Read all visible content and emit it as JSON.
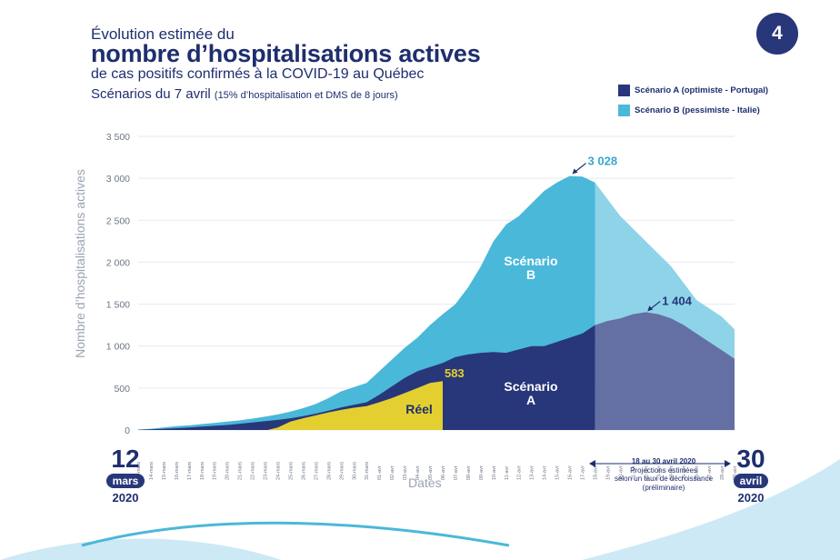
{
  "header": {
    "line1": "Évolution estimée du",
    "line2": "nombre d’hospitalisations actives",
    "line3": "de cas positifs confirmés à la COVID-19 au Québec",
    "line4": "Scénarios du 7 avril",
    "line4_small": "(15% d’hospitalisation et DMS de 8 jours)",
    "badge": "4"
  },
  "legend": [
    {
      "label": "Scénario A (optimiste - Portugal)",
      "color": "#27377a"
    },
    {
      "label": "Scénario B (pessimiste - Italie)",
      "color": "#4ab8d9"
    }
  ],
  "axis": {
    "xlabel": "Dates",
    "ylabel": "Nombre d’hospitalisations actives"
  },
  "start_date": {
    "day": "12",
    "month": "mars",
    "year": "2020"
  },
  "end_date": {
    "day": "30",
    "month": "avril",
    "year": "2020"
  },
  "projection": {
    "range": "18 au 30 avril 2020",
    "line1": "Projections estimées",
    "line2": "selon un taux de décroissance",
    "line3": "(préliminaire)"
  },
  "chart_data": {
    "type": "area",
    "ylim": [
      0,
      3500
    ],
    "yticks": [
      "0",
      "500",
      "1 000",
      "1 500",
      "2 000",
      "2 500",
      "3 000",
      "3 500"
    ],
    "x": [
      "13-mars",
      "14-mars",
      "15-mars",
      "16-mars",
      "17-mars",
      "18-mars",
      "19-mars",
      "20-mars",
      "21-mars",
      "22-mars",
      "23-mars",
      "24-mars",
      "25-mars",
      "26-mars",
      "27-mars",
      "28-mars",
      "29-mars",
      "30-mars",
      "31-mars",
      "01-avr",
      "02-avr",
      "03-avr",
      "04-avr",
      "05-avr",
      "06-avr",
      "07-avr",
      "08-avr",
      "09-avr",
      "10-avr",
      "11-avr",
      "12-avr",
      "13-avr",
      "14-avr",
      "15-avr",
      "16-avr",
      "17-avr",
      "18-avr",
      "19-avr",
      "20-avr",
      "21-avr",
      "22-avr",
      "23-avr",
      "24-avr",
      "25-avr",
      "26-avr",
      "27-avr",
      "28-avr",
      "29-avr"
    ],
    "series": [
      {
        "name": "Scénario B",
        "color": "#4ab8d9",
        "values": [
          5,
          15,
          30,
          45,
          55,
          70,
          85,
          100,
          115,
          135,
          160,
          185,
          220,
          260,
          310,
          380,
          460,
          510,
          560,
          700,
          840,
          980,
          1100,
          1250,
          1380,
          1500,
          1700,
          1950,
          2250,
          2450,
          2550,
          2700,
          2850,
          2950,
          3028,
          3020,
          2950,
          2750,
          2550,
          2400,
          2250,
          2100,
          1950,
          1750,
          1550,
          1450,
          1350,
          1200
        ]
      },
      {
        "name": "Scénario A",
        "color": "#27377a",
        "values": [
          3,
          8,
          15,
          22,
          30,
          40,
          50,
          60,
          75,
          90,
          105,
          120,
          140,
          165,
          195,
          230,
          270,
          300,
          330,
          420,
          520,
          620,
          700,
          750,
          800,
          870,
          900,
          920,
          930,
          920,
          960,
          1000,
          1000,
          1050,
          1100,
          1150,
          1250,
          1300,
          1330,
          1380,
          1404,
          1380,
          1330,
          1250,
          1150,
          1050,
          950,
          850
        ]
      },
      {
        "name": "Réel",
        "color": "#e3d030",
        "values": [
          null,
          null,
          null,
          null,
          null,
          null,
          null,
          null,
          null,
          null,
          null,
          30,
          100,
          140,
          175,
          210,
          240,
          265,
          285,
          330,
          380,
          440,
          500,
          560,
          583,
          null,
          null,
          null,
          null,
          null,
          null,
          null,
          null,
          null,
          null,
          null,
          null,
          null,
          null,
          null,
          null,
          null,
          null,
          null,
          null,
          null,
          null,
          null
        ]
      }
    ],
    "annotations": [
      {
        "text": "3 028",
        "x": "16-avr",
        "y": 3028
      },
      {
        "text": "1 404",
        "x": "22-avr",
        "y": 1404
      },
      {
        "text": "583",
        "x": "06-avr",
        "y": 583
      }
    ],
    "area_labels": [
      {
        "line1": "Scénario",
        "line2": "B"
      },
      {
        "line1": "Scénario",
        "line2": "A"
      },
      {
        "line1": "Réel",
        "line2": ""
      }
    ],
    "projection_start": "18-avr"
  }
}
